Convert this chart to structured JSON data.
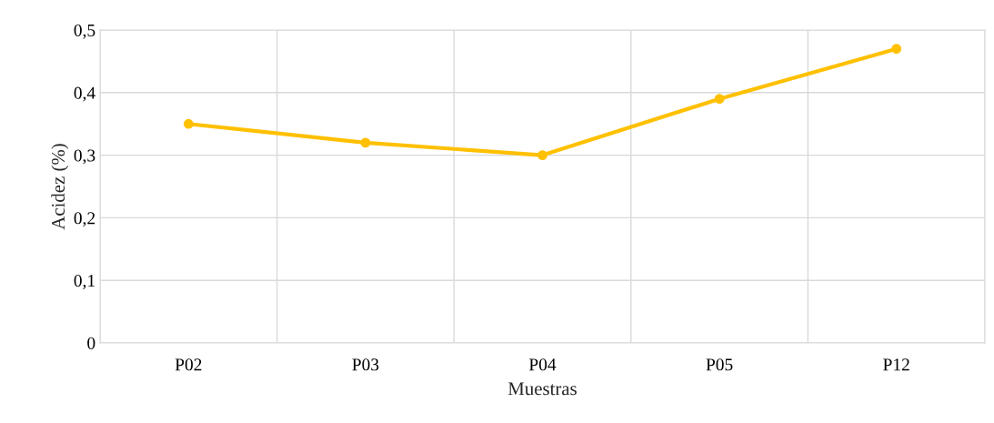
{
  "chart_data": {
    "type": "line",
    "xlabel": "Muestras",
    "ylabel": "Acidez (%)",
    "categories": [
      "P02",
      "P03",
      "P04",
      "P05",
      "P12"
    ],
    "series": [
      {
        "color": "#ffc000",
        "values": [
          0.35,
          0.32,
          0.3,
          0.39,
          0.47
        ]
      }
    ],
    "ylim": [
      0,
      0.5
    ],
    "yticks": [
      0,
      {
        "value": 0.1,
        "label": "0,1"
      },
      {
        "value": 0.2,
        "label": "0,2"
      },
      {
        "value": 0.3,
        "label": "0,3"
      },
      {
        "value": 0.4,
        "label": "0,4"
      },
      {
        "value": 0.5,
        "label": "0,5"
      }
    ],
    "grid": true,
    "marker": "circle",
    "line_style": "solid"
  }
}
